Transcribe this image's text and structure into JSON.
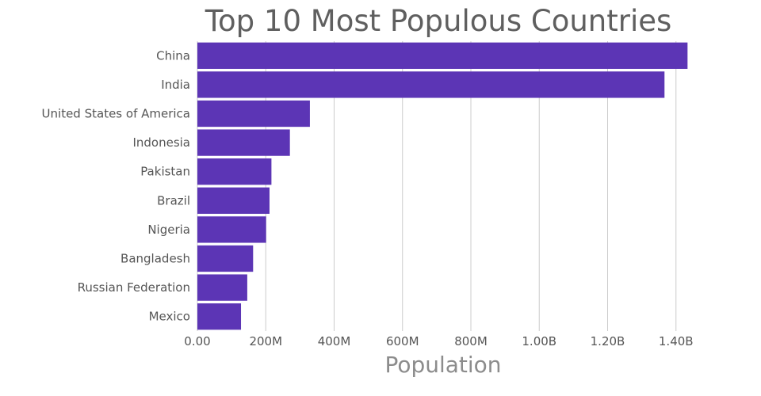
{
  "chart_data": {
    "type": "bar",
    "orientation": "horizontal",
    "title": "Top 10 Most Populous Countries",
    "xlabel": "Population",
    "ylabel": "",
    "categories": [
      "China",
      "India",
      "United States of America",
      "Indonesia",
      "Pakistan",
      "Brazil",
      "Nigeria",
      "Bangladesh",
      "Russian Federation",
      "Mexico"
    ],
    "values": [
      1433800000,
      1366400000,
      329100000,
      270600000,
      216600000,
      211000000,
      201000000,
      163000000,
      145900000,
      127600000
    ],
    "xlim": [
      0,
      1440000000
    ],
    "xticks": [
      0,
      200000000,
      400000000,
      600000000,
      800000000,
      1000000000,
      1200000000,
      1400000000
    ],
    "xtick_labels": [
      "0.00",
      "200M",
      "400M",
      "600M",
      "800M",
      "1.00B",
      "1.20B",
      "1.40B"
    ],
    "grid": true,
    "colors": {
      "bar": "#5c35b5",
      "grid": "#cccccc",
      "title": "#5f5f5f",
      "axis_title": "#8c8c8c",
      "tick": "#555555"
    }
  }
}
